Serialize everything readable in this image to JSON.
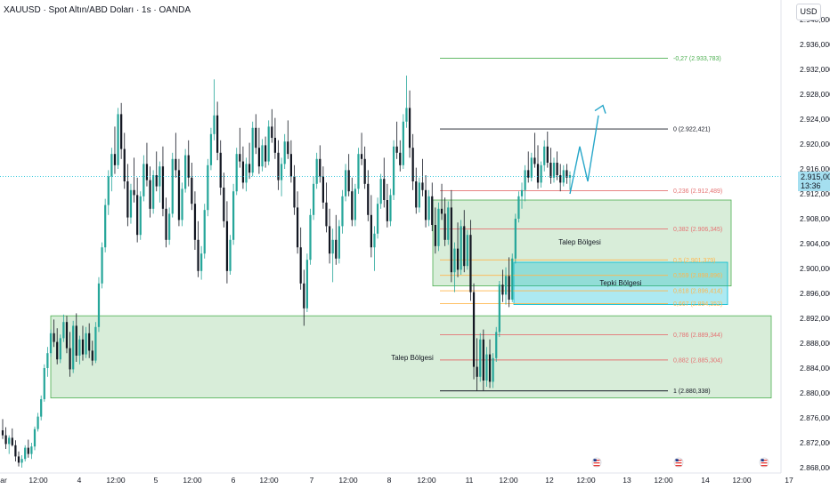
{
  "header": {
    "title": "XAUUSD · Spot Altın/ABD Doları · 1s · OANDA",
    "currency_button": "USD",
    "current_price": "2.915,000",
    "countdown": "13:36"
  },
  "chart_data": {
    "type": "candlestick",
    "symbol": "XAUUSD",
    "timeframe": "1s",
    "ylim": [
      2868,
      2940
    ],
    "y_ticks": [
      "2.868,000",
      "2.872,000",
      "2.876,000",
      "2.880,000",
      "2.884,000",
      "2.888,000",
      "2.892,000",
      "2.896,000",
      "2.900,000",
      "2.904,000",
      "2.908,000",
      "2.912,000",
      "2.916,000",
      "2.920,000",
      "2.924,000",
      "2.928,000",
      "2.932,000",
      "2.936,000",
      "2.940,000"
    ],
    "x_ticks": [
      "ar",
      "12:00",
      "4",
      "12:00",
      "5",
      "12:00",
      "6",
      "12:00",
      "7",
      "12:00",
      "8",
      "12:00",
      "11",
      "12:00",
      "12",
      "12:00",
      "13",
      "12:00",
      "14",
      "12:00",
      "17"
    ],
    "current_price_value": 2915.0,
    "fib_levels": [
      {
        "ratio": "-0.27",
        "value": 2933.783,
        "label": "-0,27 (2.933,783)",
        "color": "#4caf50"
      },
      {
        "ratio": "0",
        "value": 2922.421,
        "label": "0 (2.922,421)",
        "color": "#131722"
      },
      {
        "ratio": "0.236",
        "value": 2912.489,
        "label": "0,236 (2.912,489)",
        "color": "#e57373"
      },
      {
        "ratio": "0.382",
        "value": 2906.345,
        "label": "0,382 (2.906,345)",
        "color": "#e57373"
      },
      {
        "ratio": "0.5",
        "value": 2901.379,
        "label": "0,5 (2.901,379)",
        "color": "#ffb74d"
      },
      {
        "ratio": "0.559",
        "value": 2898.896,
        "label": "0,559 (2.898,896)",
        "color": "#ffb74d"
      },
      {
        "ratio": "0.618",
        "value": 2896.414,
        "label": "0,618 (2.896,414)",
        "color": "#ffb74d"
      },
      {
        "ratio": "0.667",
        "value": 2894.352,
        "label": "0,667 (2.894,352)",
        "color": "#ffb74d"
      },
      {
        "ratio": "0.786",
        "value": 2889.344,
        "label": "0,786 (2.889,344)",
        "color": "#e57373"
      },
      {
        "ratio": "0.882",
        "value": 2885.304,
        "label": "0,882 (2.885,304)",
        "color": "#e57373"
      },
      {
        "ratio": "1",
        "value": 2880.338,
        "label": "1 (2.880,338)",
        "color": "#131722"
      }
    ],
    "zones": [
      {
        "name": "Talep Bölgesi",
        "top": 2892.4,
        "bottom": 2879.2,
        "color": "#4caf50"
      },
      {
        "name": "Talep Bölgesi",
        "top": 2911.0,
        "bottom": 2897.2,
        "color": "#4caf50"
      },
      {
        "name": "Tepki Bölgesi",
        "top": 2901.0,
        "bottom": 2894.2,
        "color": "#00bcd4"
      }
    ],
    "candles": [
      [
        2874.0,
        2875.8,
        2872.6,
        2873.2
      ],
      [
        2873.2,
        2874.5,
        2871.0,
        2871.8
      ],
      [
        2871.8,
        2873.2,
        2870.2,
        2872.8
      ],
      [
        2872.8,
        2874.3,
        2871.4,
        2871.6
      ],
      [
        2871.6,
        2872.4,
        2869.0,
        2869.8
      ],
      [
        2869.8,
        2870.6,
        2868.2,
        2868.8
      ],
      [
        2868.8,
        2870.0,
        2868.0,
        2869.4
      ],
      [
        2869.4,
        2871.6,
        2869.0,
        2871.2
      ],
      [
        2871.2,
        2872.5,
        2869.6,
        2870.2
      ],
      [
        2870.2,
        2872.0,
        2869.4,
        2871.4
      ],
      [
        2871.4,
        2874.6,
        2870.8,
        2874.2
      ],
      [
        2874.2,
        2876.8,
        2873.8,
        2876.2
      ],
      [
        2876.2,
        2879.6,
        2875.6,
        2879.0
      ],
      [
        2879.0,
        2884.6,
        2878.6,
        2884.0
      ],
      [
        2884.0,
        2887.4,
        2882.6,
        2886.4
      ],
      [
        2886.4,
        2890.2,
        2885.8,
        2889.6
      ],
      [
        2889.6,
        2891.8,
        2887.4,
        2888.2
      ],
      [
        2888.2,
        2890.4,
        2884.6,
        2885.4
      ],
      [
        2885.4,
        2889.4,
        2884.8,
        2888.8
      ],
      [
        2888.8,
        2892.6,
        2888.2,
        2891.4
      ],
      [
        2891.4,
        2892.4,
        2886.4,
        2887.2
      ],
      [
        2887.2,
        2889.8,
        2882.6,
        2883.8
      ],
      [
        2883.8,
        2891.6,
        2883.2,
        2890.8
      ],
      [
        2890.8,
        2892.8,
        2885.0,
        2886.0
      ],
      [
        2886.0,
        2889.2,
        2884.6,
        2888.6
      ],
      [
        2888.6,
        2890.8,
        2885.2,
        2886.2
      ],
      [
        2886.2,
        2890.6,
        2885.6,
        2889.6
      ],
      [
        2889.6,
        2891.2,
        2885.6,
        2886.8
      ],
      [
        2886.8,
        2888.4,
        2884.4,
        2885.2
      ],
      [
        2885.2,
        2891.4,
        2884.8,
        2890.6
      ],
      [
        2890.6,
        2898.6,
        2889.8,
        2897.6
      ],
      [
        2897.6,
        2904.2,
        2896.8,
        2903.4
      ],
      [
        2903.4,
        2911.2,
        2902.6,
        2910.2
      ],
      [
        2910.2,
        2915.8,
        2908.6,
        2914.8
      ],
      [
        2914.8,
        2919.4,
        2912.4,
        2918.4
      ],
      [
        2918.4,
        2922.8,
        2915.2,
        2916.6
      ],
      [
        2916.6,
        2925.8,
        2916.0,
        2924.8
      ],
      [
        2924.8,
        2926.6,
        2917.6,
        2919.2
      ],
      [
        2919.2,
        2921.8,
        2912.8,
        2914.0
      ],
      [
        2914.0,
        2916.8,
        2906.8,
        2908.2
      ],
      [
        2908.2,
        2913.6,
        2907.2,
        2912.6
      ],
      [
        2912.6,
        2917.8,
        2910.6,
        2911.8
      ],
      [
        2911.8,
        2914.6,
        2904.2,
        2905.4
      ],
      [
        2905.4,
        2912.4,
        2904.6,
        2911.6
      ],
      [
        2911.6,
        2918.2,
        2910.8,
        2916.8
      ],
      [
        2916.8,
        2920.2,
        2913.2,
        2914.2
      ],
      [
        2914.2,
        2916.4,
        2908.2,
        2909.6
      ],
      [
        2909.6,
        2915.8,
        2908.8,
        2915.0
      ],
      [
        2915.0,
        2918.8,
        2912.4,
        2913.2
      ],
      [
        2913.2,
        2917.2,
        2910.6,
        2916.4
      ],
      [
        2916.4,
        2919.6,
        2908.4,
        2909.6
      ],
      [
        2909.6,
        2911.4,
        2903.4,
        2904.6
      ],
      [
        2904.6,
        2909.8,
        2903.8,
        2908.8
      ],
      [
        2908.8,
        2918.6,
        2908.2,
        2917.6
      ],
      [
        2917.6,
        2921.8,
        2914.6,
        2915.8
      ],
      [
        2915.8,
        2917.6,
        2906.8,
        2907.8
      ],
      [
        2907.8,
        2913.8,
        2906.8,
        2912.8
      ],
      [
        2912.8,
        2919.2,
        2912.2,
        2918.2
      ],
      [
        2918.2,
        2920.6,
        2913.2,
        2914.6
      ],
      [
        2914.6,
        2917.0,
        2909.4,
        2910.4
      ],
      [
        2910.4,
        2912.4,
        2903.0,
        2904.6
      ],
      [
        2904.6,
        2907.6,
        2898.6,
        2899.6
      ],
      [
        2899.6,
        2903.6,
        2898.2,
        2902.4
      ],
      [
        2902.4,
        2910.4,
        2901.6,
        2909.4
      ],
      [
        2909.4,
        2917.6,
        2908.4,
        2916.6
      ],
      [
        2916.6,
        2922.6,
        2915.8,
        2921.6
      ],
      [
        2921.6,
        2930.4,
        2920.6,
        2924.6
      ],
      [
        2924.6,
        2926.8,
        2917.4,
        2918.6
      ],
      [
        2918.6,
        2920.6,
        2911.8,
        2913.0
      ],
      [
        2913.0,
        2915.4,
        2906.6,
        2907.6
      ],
      [
        2907.6,
        2910.8,
        2897.6,
        2899.6
      ],
      [
        2899.6,
        2905.4,
        2899.0,
        2904.6
      ],
      [
        2904.6,
        2913.6,
        2903.8,
        2912.4
      ],
      [
        2912.4,
        2919.4,
        2911.8,
        2918.4
      ],
      [
        2918.4,
        2922.6,
        2916.2,
        2917.2
      ],
      [
        2917.2,
        2919.6,
        2912.8,
        2913.8
      ],
      [
        2913.8,
        2917.8,
        2912.4,
        2916.8
      ],
      [
        2916.8,
        2920.2,
        2914.4,
        2915.4
      ],
      [
        2915.4,
        2923.6,
        2914.8,
        2922.6
      ],
      [
        2922.6,
        2924.8,
        2918.4,
        2919.4
      ],
      [
        2919.4,
        2922.6,
        2915.2,
        2916.4
      ],
      [
        2916.4,
        2920.8,
        2915.6,
        2919.8
      ],
      [
        2919.8,
        2921.2,
        2916.2,
        2917.2
      ],
      [
        2917.2,
        2923.8,
        2916.6,
        2922.8
      ],
      [
        2922.8,
        2925.6,
        2920.2,
        2921.0
      ],
      [
        2921.0,
        2924.2,
        2917.6,
        2918.6
      ],
      [
        2918.6,
        2920.6,
        2912.6,
        2914.2
      ],
      [
        2914.2,
        2917.8,
        2911.6,
        2916.8
      ],
      [
        2916.8,
        2921.6,
        2916.0,
        2920.4
      ],
      [
        2920.4,
        2923.8,
        2917.6,
        2918.4
      ],
      [
        2918.4,
        2920.6,
        2913.8,
        2914.8
      ],
      [
        2914.8,
        2916.6,
        2908.6,
        2909.8
      ],
      [
        2909.8,
        2912.4,
        2902.4,
        2903.4
      ],
      [
        2903.4,
        2906.6,
        2896.6,
        2897.6
      ],
      [
        2897.6,
        2899.8,
        2890.8,
        2893.6
      ],
      [
        2893.6,
        2902.4,
        2893.0,
        2901.4
      ],
      [
        2901.4,
        2909.6,
        2900.6,
        2908.6
      ],
      [
        2908.6,
        2914.8,
        2907.8,
        2913.6
      ],
      [
        2913.6,
        2918.6,
        2912.8,
        2917.6
      ],
      [
        2917.6,
        2919.8,
        2913.8,
        2914.8
      ],
      [
        2914.8,
        2916.4,
        2909.6,
        2910.6
      ],
      [
        2910.6,
        2913.8,
        2905.8,
        2906.8
      ],
      [
        2906.8,
        2909.6,
        2900.8,
        2902.4
      ],
      [
        2902.4,
        2906.4,
        2897.8,
        2904.6
      ],
      [
        2904.6,
        2908.6,
        2900.6,
        2901.6
      ],
      [
        2901.6,
        2907.8,
        2900.8,
        2906.8
      ],
      [
        2906.8,
        2912.6,
        2905.6,
        2911.6
      ],
      [
        2911.6,
        2916.8,
        2910.8,
        2915.8
      ],
      [
        2915.8,
        2918.4,
        2911.6,
        2912.4
      ],
      [
        2912.4,
        2914.6,
        2906.8,
        2907.8
      ],
      [
        2907.8,
        2913.6,
        2906.8,
        2912.8
      ],
      [
        2912.8,
        2919.4,
        2912.0,
        2918.4
      ],
      [
        2918.4,
        2921.8,
        2916.6,
        2917.6
      ],
      [
        2917.6,
        2919.6,
        2912.8,
        2913.6
      ],
      [
        2913.6,
        2915.8,
        2907.6,
        2908.6
      ],
      [
        2908.6,
        2911.8,
        2901.8,
        2903.4
      ],
      [
        2903.4,
        2906.8,
        2899.6,
        2905.6
      ],
      [
        2905.6,
        2911.4,
        2904.8,
        2910.4
      ],
      [
        2910.4,
        2915.2,
        2909.6,
        2914.4
      ],
      [
        2914.4,
        2917.8,
        2909.8,
        2911.0
      ],
      [
        2911.0,
        2913.6,
        2906.6,
        2907.6
      ],
      [
        2907.6,
        2912.8,
        2906.8,
        2911.8
      ],
      [
        2911.8,
        2920.6,
        2911.0,
        2919.6
      ],
      [
        2919.6,
        2923.6,
        2917.6,
        2918.6
      ],
      [
        2918.6,
        2920.6,
        2915.6,
        2916.6
      ],
      [
        2916.6,
        2924.8,
        2916.0,
        2923.6
      ],
      [
        2923.6,
        2931.0,
        2922.6,
        2925.8
      ],
      [
        2925.8,
        2928.6,
        2917.8,
        2919.4
      ],
      [
        2919.4,
        2921.6,
        2912.6,
        2914.0
      ],
      [
        2914.0,
        2916.2,
        2908.8,
        2909.8
      ],
      [
        2909.8,
        2914.6,
        2909.0,
        2913.8
      ],
      [
        2913.8,
        2917.6,
        2911.6,
        2912.6
      ],
      [
        2912.6,
        2915.0,
        2906.6,
        2907.8
      ],
      [
        2907.8,
        2912.6,
        2906.8,
        2911.6
      ],
      [
        2911.6,
        2913.8,
        2906.0,
        2907.0
      ],
      [
        2907.0,
        2909.8,
        2902.4,
        2903.6
      ],
      [
        2903.6,
        2910.6,
        2902.8,
        2909.6
      ],
      [
        2909.6,
        2913.6,
        2907.8,
        2908.8
      ],
      [
        2908.8,
        2911.4,
        2903.6,
        2904.6
      ],
      [
        2904.6,
        2910.8,
        2903.8,
        2909.8
      ],
      [
        2909.8,
        2912.6,
        2897.8,
        2899.4
      ],
      [
        2899.4,
        2904.2,
        2896.2,
        2903.2
      ],
      [
        2903.2,
        2907.4,
        2898.6,
        2899.8
      ],
      [
        2899.8,
        2907.8,
        2899.0,
        2906.8
      ],
      [
        2906.8,
        2909.4,
        2899.4,
        2900.4
      ],
      [
        2900.4,
        2906.2,
        2899.8,
        2905.4
      ],
      [
        2905.4,
        2907.8,
        2894.8,
        2896.2
      ],
      [
        2896.2,
        2897.6,
        2882.2,
        2884.2
      ],
      [
        2884.2,
        2888.8,
        2880.4,
        2882.6
      ],
      [
        2882.6,
        2889.6,
        2881.8,
        2888.6
      ],
      [
        2888.6,
        2890.2,
        2880.4,
        2882.0
      ],
      [
        2882.0,
        2887.4,
        2881.0,
        2886.2
      ],
      [
        2886.2,
        2888.6,
        2880.8,
        2881.8
      ],
      [
        2881.8,
        2886.4,
        2880.8,
        2885.6
      ],
      [
        2885.6,
        2890.6,
        2885.0,
        2889.8
      ],
      [
        2889.8,
        2898.0,
        2889.0,
        2897.4
      ],
      [
        2897.4,
        2899.8,
        2894.6,
        2895.8
      ],
      [
        2895.8,
        2900.2,
        2894.2,
        2898.8
      ],
      [
        2898.8,
        2901.8,
        2893.8,
        2895.0
      ],
      [
        2895.0,
        2902.4,
        2894.6,
        2901.6
      ],
      [
        2901.6,
        2908.8,
        2900.8,
        2908.0
      ],
      [
        2908.0,
        2912.4,
        2907.4,
        2911.6
      ],
      [
        2911.6,
        2913.8,
        2909.6,
        2912.6
      ],
      [
        2912.6,
        2916.6,
        2910.8,
        2915.8
      ],
      [
        2915.8,
        2918.8,
        2913.8,
        2914.6
      ],
      [
        2914.6,
        2918.6,
        2914.0,
        2917.8
      ],
      [
        2917.8,
        2921.8,
        2916.2,
        2916.8
      ],
      [
        2916.8,
        2919.8,
        2912.8,
        2913.8
      ],
      [
        2913.8,
        2917.2,
        2913.0,
        2916.6
      ],
      [
        2916.6,
        2920.6,
        2915.6,
        2919.6
      ],
      [
        2919.6,
        2922.0,
        2916.2,
        2917.0
      ],
      [
        2917.0,
        2919.4,
        2913.6,
        2914.6
      ],
      [
        2914.6,
        2917.8,
        2913.8,
        2917.0
      ],
      [
        2917.0,
        2918.8,
        2914.2,
        2915.0
      ],
      [
        2915.0,
        2916.8,
        2912.4,
        2913.8
      ],
      [
        2913.8,
        2916.6,
        2913.2,
        2915.8
      ],
      [
        2915.8,
        2916.8,
        2913.6,
        2914.6
      ],
      [
        2914.6,
        2915.6,
        2912.6,
        2915.0
      ]
    ],
    "projection": [
      [
        2912.0,
        2919.6,
        2914.0,
        2924.6
      ],
      [
        2926.2
      ]
    ]
  }
}
